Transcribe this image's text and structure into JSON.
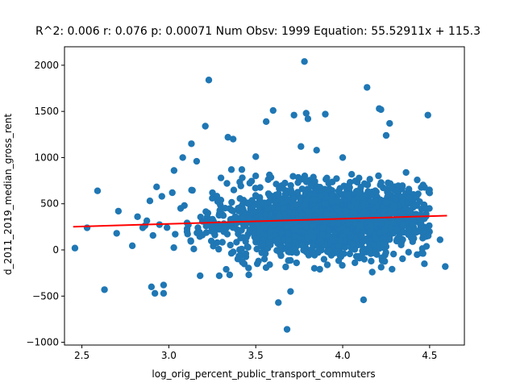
{
  "chart_data": {
    "type": "scatter",
    "title": "R^2: 0.006 r: 0.076 p: 0.00071 Num Obsv: 1999 Equation: 55.52911x + 115.3",
    "xlabel": "log_orig_percent_public_transport_commuters",
    "ylabel": "d_2011_2019_median_gross_rent",
    "xlim": [
      2.4,
      4.7
    ],
    "ylim": [
      -1030,
      2200
    ],
    "x_ticks": [
      2.5,
      3.0,
      3.5,
      4.0,
      4.5
    ],
    "x_tick_labels": [
      "2.5",
      "3.0",
      "3.5",
      "4.0",
      "4.5"
    ],
    "y_ticks": [
      -1000,
      -500,
      0,
      500,
      1000,
      1500,
      2000
    ],
    "y_tick_labels": [
      "−1000",
      "−500",
      "0",
      "500",
      "1000",
      "1500",
      "2000"
    ],
    "grid": false,
    "colors": {
      "points": "#1f77b4",
      "fit_line": "#ff0000",
      "axes": "#000000",
      "background": "#ffffff"
    },
    "fit_line": {
      "slope": 55.52911,
      "intercept": 115.3,
      "x_range": [
        2.45,
        4.6
      ]
    },
    "n_points": 1999,
    "series": [
      {
        "points_outlier": [
          [
            2.46,
            20
          ],
          [
            2.53,
            240
          ],
          [
            2.59,
            640
          ],
          [
            2.63,
            -430
          ],
          [
            2.7,
            180
          ],
          [
            2.71,
            420
          ],
          [
            2.79,
            45
          ],
          [
            2.82,
            360
          ],
          [
            2.85,
            240
          ],
          [
            2.9,
            -400
          ],
          [
            2.92,
            -470
          ],
          [
            2.97,
            -380
          ],
          [
            2.97,
            -470
          ],
          [
            3.03,
            860
          ],
          [
            3.13,
            1150
          ],
          [
            3.21,
            1340
          ],
          [
            3.23,
            1840
          ],
          [
            3.3,
            780
          ],
          [
            3.36,
            870
          ],
          [
            3.34,
            1220
          ],
          [
            3.37,
            1200
          ],
          [
            3.42,
            870
          ],
          [
            3.5,
            1010
          ],
          [
            3.56,
            1390
          ],
          [
            3.6,
            1510
          ],
          [
            3.63,
            -570
          ],
          [
            3.68,
            -860
          ],
          [
            3.7,
            -450
          ],
          [
            3.72,
            1460
          ],
          [
            3.76,
            1120
          ],
          [
            3.78,
            2040
          ],
          [
            3.79,
            1480
          ],
          [
            3.8,
            1420
          ],
          [
            3.85,
            1080
          ],
          [
            3.9,
            1470
          ],
          [
            4.0,
            1000
          ],
          [
            4.12,
            -540
          ],
          [
            4.14,
            1760
          ],
          [
            4.21,
            1530
          ],
          [
            4.22,
            1520
          ],
          [
            4.25,
            1240
          ],
          [
            4.27,
            1370
          ],
          [
            4.49,
            1460
          ],
          [
            4.56,
            110
          ],
          [
            4.59,
            -180
          ],
          [
            3.18,
            -280
          ],
          [
            3.29,
            -280
          ],
          [
            3.35,
            -270
          ],
          [
            3.16,
            960
          ],
          [
            3.08,
            1000
          ],
          [
            3.46,
            -270
          ],
          [
            3.58,
            -160
          ],
          [
            4.17,
            -240
          ],
          [
            4.47,
            -150
          ],
          [
            2.96,
            580
          ],
          [
            3.02,
            620
          ],
          [
            3.25,
            560
          ],
          [
            3.43,
            420
          ],
          [
            3.33,
            -210
          ]
        ]
      }
    ]
  }
}
